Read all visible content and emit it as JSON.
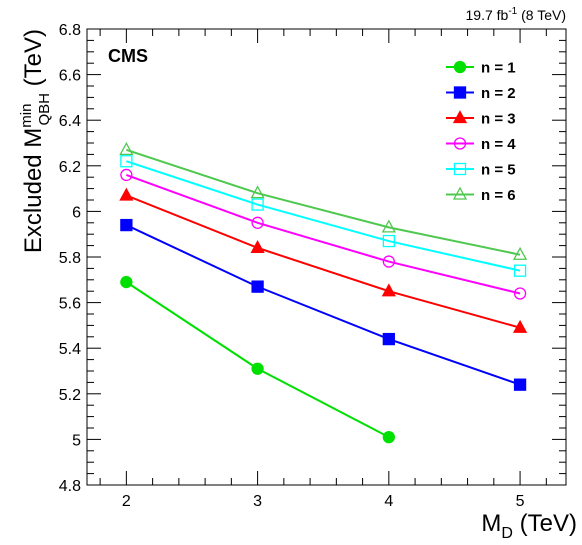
{
  "chart_data": {
    "type": "line",
    "annotation": "CMS",
    "lumi": {
      "value": "19.7 fb",
      "exp": "-1",
      "energy": " (8 TeV)"
    },
    "xlabel": {
      "main": "M",
      "sub": "D",
      "unit": " (TeV)"
    },
    "ylabel": {
      "main": "Excluded M",
      "sup": "min",
      "sub": "QBH",
      "unit": " (TeV)"
    },
    "xlim": [
      1.7,
      5.35
    ],
    "ylim": [
      4.8,
      6.8
    ],
    "xticks": [
      2,
      3,
      4,
      5
    ],
    "yticks": [
      4.8,
      5,
      5.2,
      5.4,
      5.6,
      5.8,
      6,
      6.2,
      6.4,
      6.6,
      6.8
    ],
    "ytick_labels": [
      "4.8",
      "5",
      "5.2",
      "5.4",
      "5.6",
      "5.8",
      "6",
      "6.2",
      "6.4",
      "6.6",
      "6.8"
    ],
    "x": [
      2,
      3,
      4,
      5
    ],
    "legend_position": "top-right",
    "grid": false,
    "series": [
      {
        "name": "n = 1",
        "color": "#00e000",
        "marker": "circle-filled",
        "x": [
          2,
          3,
          4
        ],
        "values": [
          5.69,
          5.31,
          5.01
        ]
      },
      {
        "name": "n = 2",
        "color": "#0000ff",
        "marker": "square-filled",
        "x": [
          2,
          3,
          4,
          5
        ],
        "values": [
          5.94,
          5.67,
          5.44,
          5.24
        ]
      },
      {
        "name": "n = 3",
        "color": "#ff0000",
        "marker": "triangle-filled",
        "x": [
          2,
          3,
          4,
          5
        ],
        "values": [
          6.07,
          5.84,
          5.65,
          5.49
        ]
      },
      {
        "name": "n = 4",
        "color": "#ff00ff",
        "marker": "circle-open",
        "x": [
          2,
          3,
          4,
          5
        ],
        "values": [
          6.16,
          5.95,
          5.78,
          5.64
        ]
      },
      {
        "name": "n = 5",
        "color": "#00ffff",
        "marker": "square-open",
        "x": [
          2,
          3,
          4,
          5
        ],
        "values": [
          6.22,
          6.03,
          5.87,
          5.74
        ]
      },
      {
        "name": "n = 6",
        "color": "#4fc84f",
        "marker": "triangle-open",
        "x": [
          2,
          3,
          4,
          5
        ],
        "values": [
          6.27,
          6.08,
          5.93,
          5.81
        ]
      }
    ]
  }
}
